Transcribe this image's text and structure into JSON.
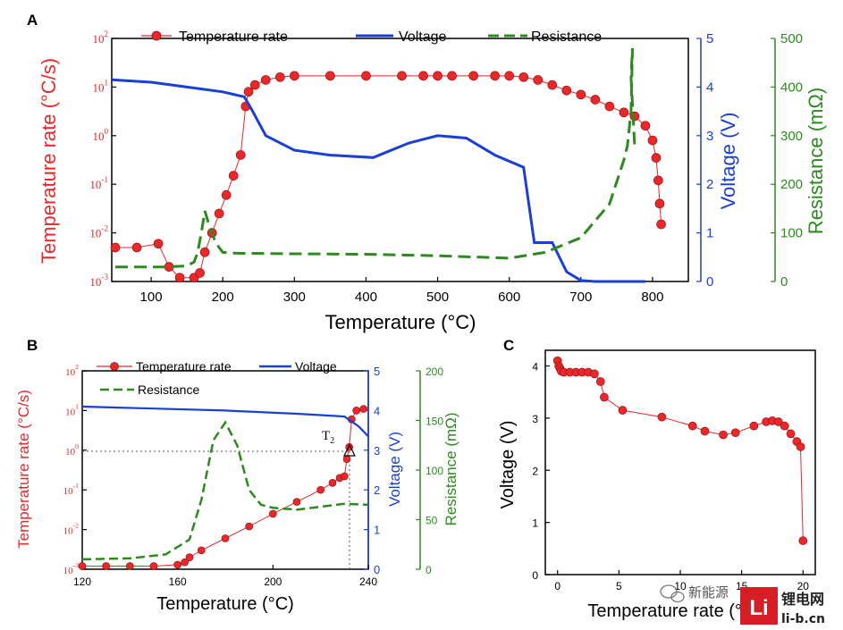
{
  "chart_data": [
    {
      "panel": "A",
      "type": "line",
      "xlabel": "Temperature (°C)",
      "xlim": [
        45,
        850
      ],
      "xticks": [
        100,
        200,
        300,
        400,
        500,
        600,
        700,
        800
      ],
      "y_left": {
        "label": "Temperature rate (°C/s)",
        "scale": "log",
        "lim": [
          0.001,
          100
        ],
        "ticks": [
          "10^-3",
          "10^-2",
          "10^-1",
          "10^0",
          "10^1",
          "10^2"
        ],
        "color": "#e8282b"
      },
      "y_right1": {
        "label": "Voltage (V)",
        "lim": [
          0,
          5
        ],
        "ticks": [
          0,
          1,
          2,
          3,
          4,
          5
        ],
        "color": "#1a3fd6"
      },
      "y_right2": {
        "label": "Resistance (mΩ)",
        "lim": [
          0,
          500
        ],
        "ticks": [
          0,
          100,
          200,
          300,
          400,
          500
        ],
        "color": "#2c8a1e"
      },
      "legend": [
        "Temperature rate",
        "Voltage",
        "Resistance"
      ],
      "legend_position": "top",
      "series": [
        {
          "name": "Temperature rate",
          "axis": "left",
          "style": "line-markers",
          "color": "#e8282b",
          "x": [
            50,
            80,
            110,
            125,
            140,
            160,
            168,
            175,
            185,
            195,
            205,
            215,
            225,
            232,
            236,
            245,
            260,
            280,
            300,
            350,
            400,
            450,
            480,
            500,
            520,
            550,
            580,
            600,
            620,
            640,
            660,
            680,
            700,
            720,
            740,
            760,
            775,
            790,
            800,
            805,
            808,
            810,
            812
          ],
          "y": [
            0.005,
            0.005,
            0.006,
            0.002,
            0.0012,
            0.0012,
            0.0015,
            0.004,
            0.01,
            0.025,
            0.06,
            0.15,
            0.4,
            4,
            8,
            11,
            14,
            16,
            17,
            17,
            17,
            17,
            17,
            17,
            17,
            17,
            17,
            17,
            16,
            14,
            11,
            8.5,
            7,
            5.5,
            4,
            3,
            2.5,
            1.6,
            0.8,
            0.35,
            0.12,
            0.04,
            0.015
          ]
        },
        {
          "name": "Voltage",
          "axis": "right1",
          "style": "line",
          "color": "#1a3fd6",
          "x": [
            45,
            100,
            150,
            200,
            230,
            240,
            260,
            300,
            350,
            410,
            460,
            500,
            540,
            580,
            620,
            635,
            660,
            680,
            700,
            720,
            790
          ],
          "y": [
            4.15,
            4.1,
            4.0,
            3.9,
            3.8,
            3.55,
            3.0,
            2.7,
            2.6,
            2.55,
            2.85,
            3.0,
            2.95,
            2.6,
            2.35,
            0.8,
            0.8,
            0.2,
            0.02,
            0,
            0
          ]
        },
        {
          "name": "Resistance",
          "axis": "right2",
          "style": "dashed",
          "color": "#2c8a1e",
          "x": [
            50,
            120,
            150,
            160,
            165,
            170,
            175,
            180,
            190,
            200,
            220,
            300,
            400,
            500,
            600,
            650,
            700,
            740,
            760,
            765,
            770,
            772,
            770,
            775
          ],
          "y": [
            30,
            30,
            32,
            40,
            60,
            100,
            145,
            120,
            80,
            60,
            58,
            57,
            56,
            53,
            48,
            60,
            90,
            160,
            250,
            280,
            350,
            480,
            420,
            280
          ]
        }
      ]
    },
    {
      "panel": "B",
      "type": "line",
      "xlabel": "Temperature (°C)",
      "xlim": [
        120,
        240
      ],
      "xticks": [
        120,
        160,
        200,
        240
      ],
      "y_left": {
        "label": "Temperature rate (°C/s)",
        "scale": "log",
        "lim": [
          0.001,
          100
        ],
        "ticks": [
          "10^-3",
          "10^-2",
          "10^-1",
          "10^0",
          "10^1",
          "10^2"
        ],
        "color": "#e8282b"
      },
      "y_right1": {
        "label": "Voltage (V)",
        "lim": [
          0,
          5
        ],
        "ticks": [
          0,
          1,
          2,
          3,
          4,
          5
        ],
        "color": "#1a3fd6"
      },
      "y_right2": {
        "label": "Resistance (mΩ)",
        "lim": [
          0,
          200
        ],
        "ticks": [
          0,
          50,
          100,
          150,
          200
        ],
        "color": "#2c8a1e"
      },
      "legend": [
        "Temperature rate",
        "Voltage",
        "Resistance"
      ],
      "legend_position": "top-left",
      "annotation": {
        "label": "T",
        "subscript": "2",
        "x": 232,
        "y_rate": 1
      },
      "series": [
        {
          "name": "Temperature rate",
          "axis": "left",
          "style": "line-markers",
          "color": "#e8282b",
          "x": [
            120,
            130,
            140,
            150,
            160,
            163,
            165,
            170,
            180,
            190,
            200,
            210,
            220,
            225,
            228,
            230,
            231,
            232,
            233,
            235,
            238
          ],
          "y": [
            0.0012,
            0.0012,
            0.0012,
            0.0012,
            0.0013,
            0.0015,
            0.002,
            0.003,
            0.006,
            0.012,
            0.025,
            0.05,
            0.1,
            0.15,
            0.2,
            0.22,
            0.6,
            1.2,
            6,
            10,
            11
          ]
        },
        {
          "name": "Voltage",
          "axis": "right1",
          "style": "line",
          "color": "#1a3fd6",
          "x": [
            120,
            150,
            180,
            210,
            230,
            236,
            240
          ],
          "y": [
            4.1,
            4.05,
            4.0,
            3.92,
            3.85,
            3.6,
            3.35
          ]
        },
        {
          "name": "Resistance",
          "axis": "right2",
          "style": "dashed",
          "color": "#2c8a1e",
          "x": [
            120,
            140,
            155,
            165,
            170,
            175,
            180,
            185,
            190,
            195,
            200,
            210,
            220,
            230,
            240
          ],
          "y": [
            10,
            11,
            15,
            30,
            70,
            130,
            148,
            125,
            80,
            65,
            62,
            60,
            63,
            66,
            65
          ]
        }
      ]
    },
    {
      "panel": "C",
      "type": "scatter",
      "xlabel": "Temperature rate (°C/s)",
      "ylabel": "Voltage (V)",
      "xlim": [
        -1,
        21
      ],
      "ylim": [
        0,
        4.3
      ],
      "xticks": [
        0,
        5,
        10,
        15,
        20
      ],
      "yticks": [
        0,
        1,
        2,
        3,
        4
      ],
      "series": [
        {
          "name": "",
          "color": "#e8282b",
          "x": [
            0,
            0.1,
            0.2,
            0.3,
            0.5,
            1,
            1.5,
            2,
            2.5,
            3,
            3.5,
            3.8,
            5.3,
            8.5,
            11,
            12,
            13.5,
            14.5,
            16,
            17,
            17.5,
            18,
            18.5,
            19,
            19.5,
            19.8,
            20
          ],
          "y": [
            4.1,
            4.0,
            3.95,
            3.9,
            3.88,
            3.88,
            3.88,
            3.88,
            3.88,
            3.85,
            3.7,
            3.4,
            3.15,
            3.02,
            2.85,
            2.75,
            2.68,
            2.72,
            2.85,
            2.93,
            2.95,
            2.93,
            2.85,
            2.7,
            2.55,
            2.45,
            0.65
          ]
        }
      ]
    }
  ],
  "labels": {
    "panelA": "A",
    "panelB": "B",
    "panelC": "C",
    "legTemp": "Temperature rate",
    "legVolt": "Voltage",
    "legRes": "Resistance",
    "xlabelA": "Temperature (°C)",
    "xlabelB": "Temperature (°C)",
    "ylabelRate": "Temperature rate (°C/s)",
    "ylabelVolt": "Voltage (V)",
    "ylabelRes": "Resistance (mΩ)",
    "xlabelC": "Temperature rate (°C/s)",
    "ylabelC": "Voltage (V)",
    "t2": "T",
    "t2sub": "2"
  },
  "watermark": {
    "wechat": "新能源",
    "brand_cn": "锂电网",
    "brand_url": "li-b.cn",
    "brand_logo": "Li"
  }
}
